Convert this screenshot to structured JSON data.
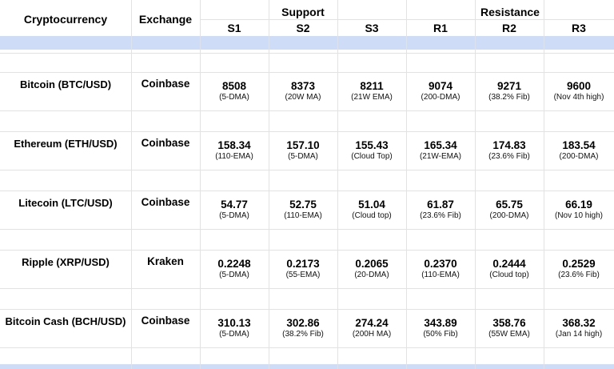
{
  "header": {
    "crypto": "Cryptocurrency",
    "exchange": "Exchange",
    "support": "Support",
    "resistance": "Resistance",
    "levels": [
      "S1",
      "S2",
      "S3",
      "R1",
      "R2",
      "R3"
    ]
  },
  "rows": [
    {
      "name": "Bitcoin (BTC/USD)",
      "exchange": "Coinbase",
      "cells": [
        {
          "value": "8508",
          "note": "(5-DMA)"
        },
        {
          "value": "8373",
          "note": "(20W MA)"
        },
        {
          "value": "8211",
          "note": "(21W EMA)"
        },
        {
          "value": "9074",
          "note": "(200-DMA)"
        },
        {
          "value": "9271",
          "note": "(38.2% Fib)"
        },
        {
          "value": "9600",
          "note": "(Nov 4th high)"
        }
      ]
    },
    {
      "name": "Ethereum (ETH/USD)",
      "exchange": "Coinbase",
      "cells": [
        {
          "value": "158.34",
          "note": "(110-EMA)"
        },
        {
          "value": "157.10",
          "note": "(5-DMA)"
        },
        {
          "value": "155.43",
          "note": "(Cloud Top)"
        },
        {
          "value": "165.34",
          "note": "(21W-EMA)"
        },
        {
          "value": "174.83",
          "note": "(23.6% Fib)"
        },
        {
          "value": "183.54",
          "note": "(200-DMA)"
        }
      ]
    },
    {
      "name": "Litecoin (LTC/USD)",
      "exchange": "Coinbase",
      "cells": [
        {
          "value": "54.77",
          "note": "(5-DMA)"
        },
        {
          "value": "52.75",
          "note": "(110-EMA)"
        },
        {
          "value": "51.04",
          "note": "(Cloud top)"
        },
        {
          "value": "61.87",
          "note": "(23.6% Fib)"
        },
        {
          "value": "65.75",
          "note": "(200-DMA)"
        },
        {
          "value": "66.19",
          "note": "(Nov 10 high)"
        }
      ]
    },
    {
      "name": "Ripple (XRP/USD)",
      "exchange": "Kraken",
      "cells": [
        {
          "value": "0.2248",
          "note": "(5-DMA)"
        },
        {
          "value": "0.2173",
          "note": "(55-EMA)"
        },
        {
          "value": "0.2065",
          "note": "(20-DMA)"
        },
        {
          "value": "0.2370",
          "note": "(110-EMA)"
        },
        {
          "value": "0.2444",
          "note": "(Cloud top)"
        },
        {
          "value": "0.2529",
          "note": "(23.6% Fib)"
        }
      ]
    },
    {
      "name": "Bitcoin Cash (BCH/USD)",
      "exchange": "Coinbase",
      "cells": [
        {
          "value": "310.13",
          "note": "(5-DMA)"
        },
        {
          "value": "302.86",
          "note": "(38.2% Fib)"
        },
        {
          "value": "274.24",
          "note": "(200H MA)"
        },
        {
          "value": "343.89",
          "note": "(50% Fib)"
        },
        {
          "value": "358.76",
          "note": "(55W EMA)"
        },
        {
          "value": "368.32",
          "note": "(Jan 14 high)"
        }
      ]
    }
  ]
}
